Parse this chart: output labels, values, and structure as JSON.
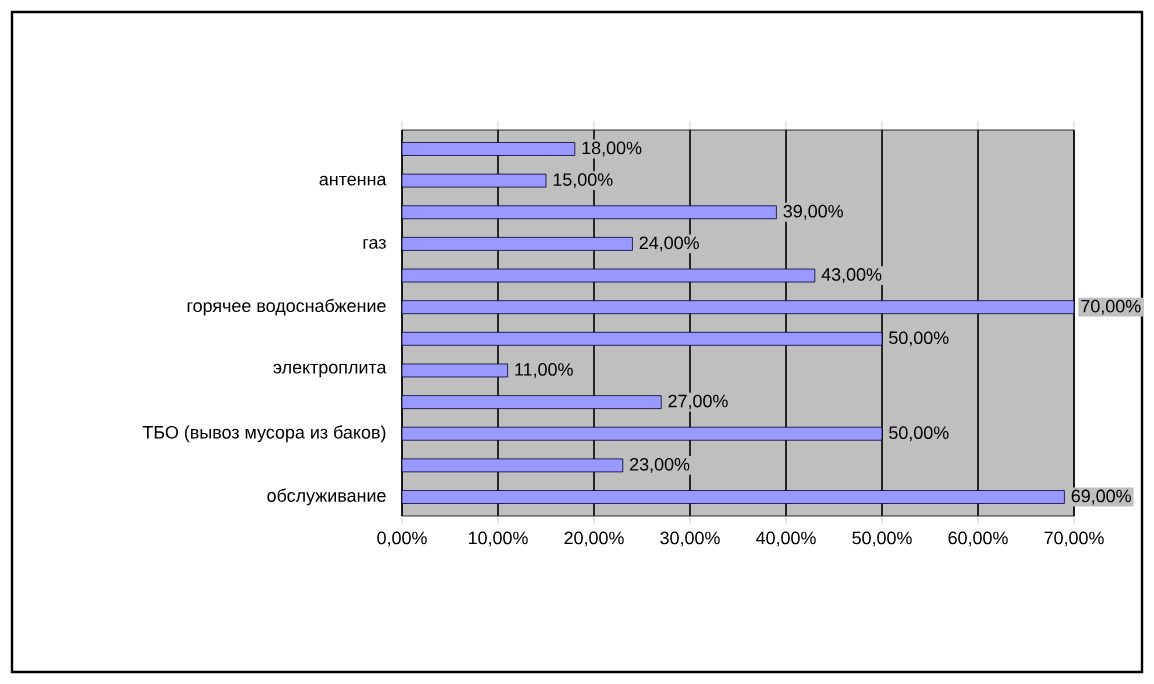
{
  "chart_data": {
    "type": "bar",
    "orientation": "horizontal",
    "categories": [
      null,
      "антенна",
      null,
      "газ",
      null,
      "горячее водоснабжение",
      null,
      "электроплита",
      null,
      "ТБО  (вывоз мусора из баков)",
      null,
      "обслуживание"
    ],
    "values": [
      18,
      15,
      39,
      24,
      43,
      70,
      50,
      11,
      27,
      50,
      23,
      69
    ],
    "value_labels": [
      "18,00%",
      "15,00%",
      "39,00%",
      "24,00%",
      "43,00%",
      "70,00%",
      "50,00%",
      "11,00%",
      "27,00%",
      "50,00%",
      "23,00%",
      "69,00%"
    ],
    "color": "#9999ff",
    "xlim": [
      0,
      70
    ],
    "xticks": [
      {
        "value": 0,
        "label": "0,00%"
      },
      {
        "value": 10,
        "label": "10,00%"
      },
      {
        "value": 20,
        "label": "20,00%"
      },
      {
        "value": 30,
        "label": "30,00%"
      },
      {
        "value": 40,
        "label": "40,00%"
      },
      {
        "value": 50,
        "label": "50,00%"
      },
      {
        "value": 60,
        "label": "60,00%"
      },
      {
        "value": 70,
        "label": "70,00%"
      }
    ],
    "grid": "x"
  }
}
